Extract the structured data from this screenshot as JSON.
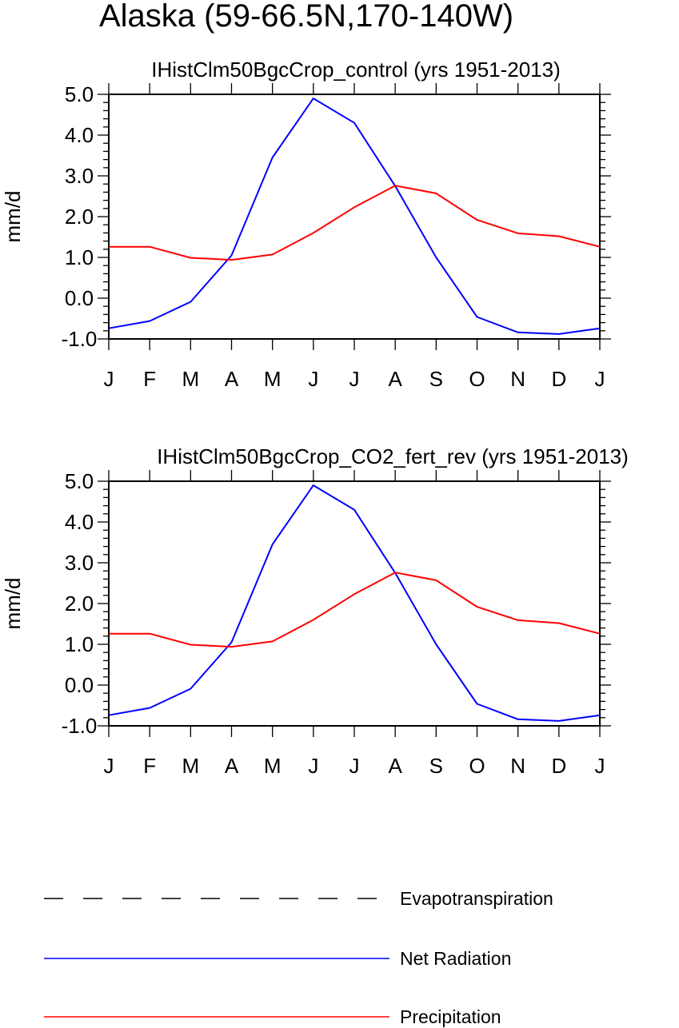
{
  "page": {
    "title": "Alaska (59-66.5N,170-140W)"
  },
  "chart_data": [
    {
      "type": "line",
      "title": "IHistClm50BgcCrop_control (yrs 1951-2013)",
      "xlabel": "",
      "ylabel": "mm/d",
      "categories": [
        "J",
        "F",
        "M",
        "A",
        "M",
        "J",
        "J",
        "A",
        "S",
        "O",
        "N",
        "D",
        "J"
      ],
      "ylim": [
        -1.0,
        5.0
      ],
      "yticks": [
        "5.0",
        "4.0",
        "3.0",
        "2.0",
        "1.0",
        "0.0",
        "-1.0"
      ],
      "grid": false,
      "series": [
        {
          "name": "Net Radiation",
          "color": "#0000ff",
          "style": "solid",
          "values": [
            -0.74,
            -0.56,
            -0.09,
            1.05,
            3.45,
            4.9,
            4.3,
            2.75,
            1.0,
            -0.46,
            -0.84,
            -0.88,
            -0.74
          ]
        },
        {
          "name": "Precipitation",
          "color": "#ff0000",
          "style": "solid",
          "values": [
            1.26,
            1.26,
            0.99,
            0.94,
            1.07,
            1.6,
            2.23,
            2.76,
            2.57,
            1.92,
            1.59,
            1.52,
            1.26
          ]
        }
      ]
    },
    {
      "type": "line",
      "title": "IHistClm50BgcCrop_CO2_fert_rev (yrs 1951-2013)",
      "xlabel": "",
      "ylabel": "mm/d",
      "categories": [
        "J",
        "F",
        "M",
        "A",
        "M",
        "J",
        "J",
        "A",
        "S",
        "O",
        "N",
        "D",
        "J"
      ],
      "ylim": [
        -1.0,
        5.0
      ],
      "yticks": [
        "5.0",
        "4.0",
        "3.0",
        "2.0",
        "1.0",
        "0.0",
        "-1.0"
      ],
      "grid": false,
      "series": [
        {
          "name": "Net Radiation",
          "color": "#0000ff",
          "style": "solid",
          "values": [
            -0.74,
            -0.56,
            -0.09,
            1.05,
            3.45,
            4.9,
            4.3,
            2.75,
            1.0,
            -0.46,
            -0.84,
            -0.88,
            -0.74
          ]
        },
        {
          "name": "Precipitation",
          "color": "#ff0000",
          "style": "solid",
          "values": [
            1.26,
            1.26,
            0.99,
            0.94,
            1.07,
            1.6,
            2.23,
            2.76,
            2.57,
            1.92,
            1.59,
            1.52,
            1.26
          ]
        }
      ]
    }
  ],
  "legend": {
    "placement": "bottom",
    "items": [
      {
        "label": "Evapotranspiration",
        "color": "#000000",
        "style": "dashed"
      },
      {
        "label": "Net Radiation",
        "color": "#0000ff",
        "style": "solid"
      },
      {
        "label": "Precipitation",
        "color": "#ff0000",
        "style": "solid"
      }
    ]
  }
}
